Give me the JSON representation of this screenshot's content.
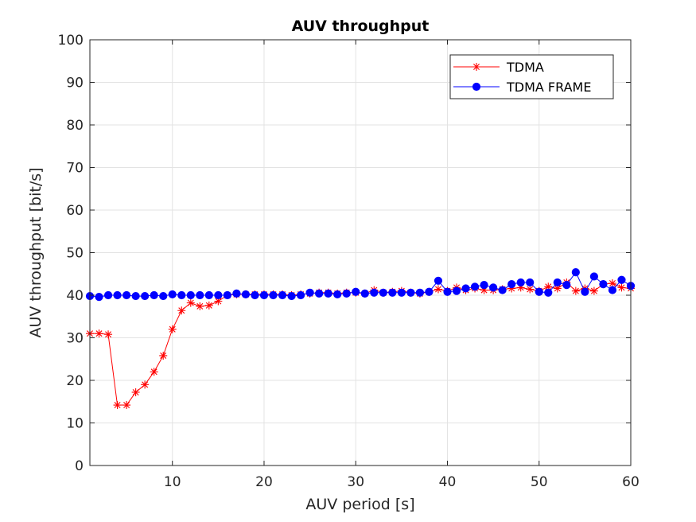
{
  "chart_data": {
    "type": "line",
    "title": "AUV throughput",
    "xlabel": "AUV period [s]",
    "ylabel": "AUV throughput [bit/s]",
    "xlim": [
      1,
      60
    ],
    "ylim": [
      0,
      100
    ],
    "xticks": [
      10,
      20,
      30,
      40,
      50,
      60
    ],
    "yticks": [
      0,
      10,
      20,
      30,
      40,
      50,
      60,
      70,
      80,
      90,
      100
    ],
    "grid": true,
    "legend_position": "top-right",
    "x": [
      1,
      2,
      3,
      4,
      5,
      6,
      7,
      8,
      9,
      10,
      11,
      12,
      13,
      14,
      15,
      16,
      17,
      18,
      19,
      20,
      21,
      22,
      23,
      24,
      25,
      26,
      27,
      28,
      29,
      30,
      31,
      32,
      33,
      34,
      35,
      36,
      37,
      38,
      39,
      40,
      41,
      42,
      43,
      44,
      45,
      46,
      47,
      48,
      49,
      50,
      51,
      52,
      53,
      54,
      55,
      56,
      57,
      58,
      59,
      60
    ],
    "series": [
      {
        "name": "TDMA",
        "color": "#ff0000",
        "marker": "asterisk",
        "values": [
          31,
          31,
          30.8,
          14.2,
          14.2,
          17.2,
          19,
          22,
          25.8,
          32,
          36.4,
          38.2,
          37.4,
          37.6,
          38.6,
          40,
          40.2,
          40.2,
          40.2,
          40.2,
          40.2,
          40.2,
          40,
          40.2,
          40.4,
          40.6,
          40.6,
          40.4,
          40.6,
          40.6,
          40.4,
          41.2,
          40.6,
          40.8,
          41,
          40.6,
          40.4,
          40.8,
          41.4,
          41,
          41.8,
          41.2,
          41.6,
          41.2,
          41.2,
          41.4,
          41.6,
          41.8,
          41.4,
          41,
          42,
          41.6,
          43,
          41,
          41.6,
          41,
          42.6,
          42.8,
          41.8,
          41.6
        ]
      },
      {
        "name": "TDMA FRAME",
        "color": "#0000ff",
        "marker": "circle",
        "values": [
          39.8,
          39.6,
          40,
          40,
          40,
          39.8,
          39.8,
          40,
          39.8,
          40.2,
          40,
          40,
          40,
          40,
          40,
          40,
          40.4,
          40.2,
          40,
          40,
          40,
          40,
          39.8,
          40,
          40.6,
          40.4,
          40.4,
          40.2,
          40.4,
          40.8,
          40.4,
          40.6,
          40.6,
          40.6,
          40.6,
          40.6,
          40.6,
          40.8,
          43.4,
          40.8,
          41,
          41.6,
          42,
          42.4,
          41.8,
          41.2,
          42.6,
          43,
          43,
          40.8,
          40.6,
          43,
          42.4,
          45.4,
          40.8,
          44.4,
          42.6,
          41.2,
          43.6,
          42.2
        ]
      }
    ]
  }
}
